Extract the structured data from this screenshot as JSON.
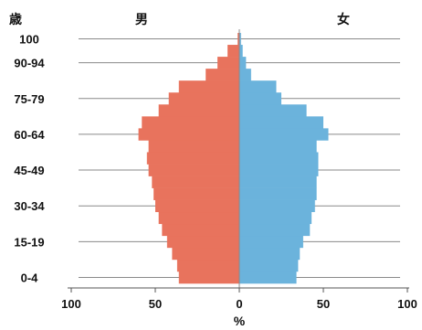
{
  "chart_data": {
    "type": "bar",
    "orientation": "horizontal",
    "ylabel": "歳",
    "xlabel": "%",
    "xlim": [
      -100,
      100
    ],
    "xticks": [
      100,
      50,
      0,
      50,
      100
    ],
    "grid": "horizontal",
    "age_groups": [
      "0-4",
      "5-9",
      "10-14",
      "15-19",
      "20-24",
      "25-29",
      "30-34",
      "35-39",
      "40-44",
      "45-49",
      "50-54",
      "55-59",
      "60-64",
      "65-69",
      "70-74",
      "75-79",
      "80-84",
      "85-89",
      "90-94",
      "95-99",
      "100"
    ],
    "ytick_labels": [
      {
        "group": "0-4",
        "text": "0-4"
      },
      {
        "group": "15-19",
        "text": "15-19"
      },
      {
        "group": "30-34",
        "text": "30-34"
      },
      {
        "group": "45-49",
        "text": "45-49"
      },
      {
        "group": "60-64",
        "text": "60-64"
      },
      {
        "group": "75-79",
        "text": "75-79"
      },
      {
        "group": "90-94",
        "text": "90-94"
      },
      {
        "group": "100",
        "text": "100"
      }
    ],
    "series": [
      {
        "name": "男",
        "color": "#e8735d",
        "values": [
          36,
          37,
          40,
          43,
          46,
          48,
          50,
          51,
          52,
          54,
          55,
          54,
          60,
          58,
          48,
          42,
          36,
          20,
          13,
          7,
          1
        ]
      },
      {
        "name": "女",
        "color": "#6bb3dc",
        "values": [
          34,
          35,
          36,
          38,
          42,
          43,
          45,
          46,
          46,
          47,
          47,
          46,
          53,
          50,
          40,
          25,
          22,
          7,
          4,
          2,
          1
        ]
      }
    ]
  }
}
